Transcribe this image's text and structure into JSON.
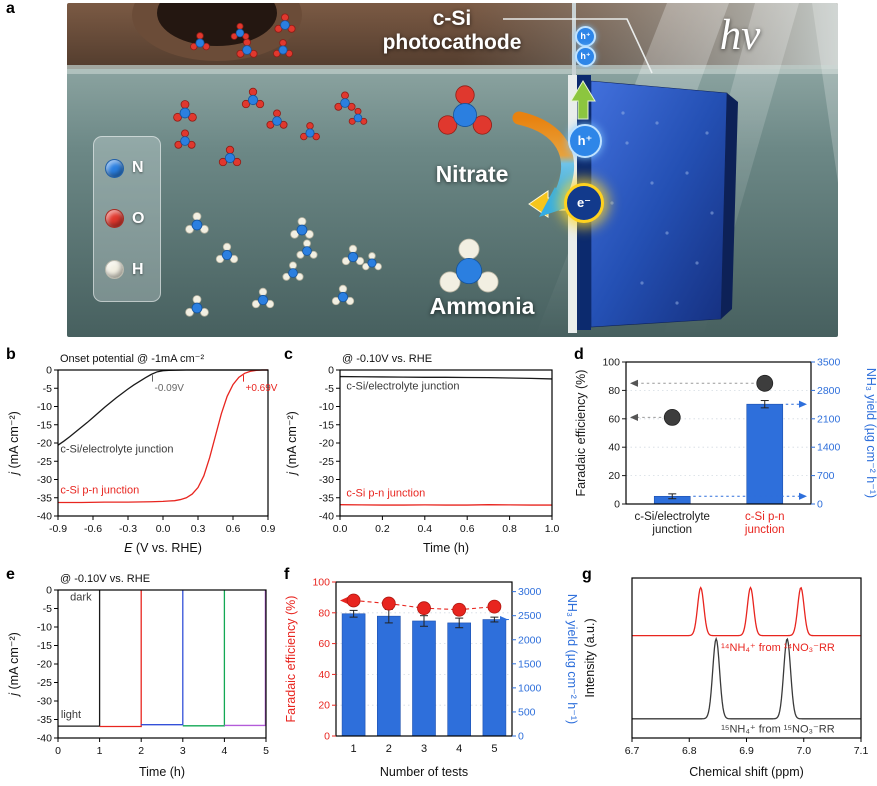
{
  "panels": {
    "a": {
      "letter": "a"
    },
    "b": {
      "letter": "b"
    },
    "c": {
      "letter": "c"
    },
    "d": {
      "letter": "d"
    },
    "e": {
      "letter": "e"
    },
    "f": {
      "letter": "f"
    },
    "g": {
      "letter": "g"
    }
  },
  "panel_a": {
    "title_line1": "c-Si",
    "title_line2": "photocathode",
    "hv": "hν",
    "nitrate_label": "Nitrate",
    "ammonia_label": "Ammonia",
    "hole_label": "h⁺",
    "electron_label": "e⁻",
    "legend": [
      {
        "label": "N",
        "color": "#2b7fe0"
      },
      {
        "label": "O",
        "color": "#e0382e"
      },
      {
        "label": "H",
        "color": "#f2efe2"
      }
    ]
  },
  "colors": {
    "red": "#e8251f",
    "blue": "#2e6fdb",
    "black": "#1a1a1a"
  },
  "chart_data": [
    {
      "id": "b",
      "type": "line",
      "title": "Onset potential @ -1mA cm⁻²",
      "xlabel": {
        "italic": "E",
        "rest": " (V vs. RHE)"
      },
      "ylabel": {
        "italic": "j",
        "rest": " (mA cm⁻²)"
      },
      "xlim": [
        -0.9,
        0.9
      ],
      "ylim": [
        -40,
        0
      ],
      "xticks": [
        "-0.9",
        "-0.6",
        "-0.3",
        "0.0",
        "0.3",
        "0.6",
        "0.9"
      ],
      "yticks": [
        0,
        -5,
        -10,
        -15,
        -20,
        -25,
        -30,
        -35,
        -40
      ],
      "series": [
        {
          "name": "c-Si/electrolyte junction",
          "color": "#1a1a1a",
          "label_color": "#3a3a3a",
          "label_pos": [
            -0.88,
            -22.6
          ],
          "x": [
            -0.9,
            -0.85,
            -0.8,
            -0.75,
            -0.7,
            -0.65,
            -0.6,
            -0.55,
            -0.5,
            -0.45,
            -0.4,
            -0.35,
            -0.3,
            -0.25,
            -0.2,
            -0.15,
            -0.1,
            -0.05,
            0,
            0.05,
            0.1,
            0.2,
            0.4,
            0.6,
            0.8,
            0.9
          ],
          "y": [
            -20.6,
            -19.5,
            -18.3,
            -17.0,
            -15.7,
            -14.4,
            -13.0,
            -11.6,
            -10.2,
            -8.9,
            -7.6,
            -6.4,
            -5.2,
            -4.1,
            -3.1,
            -2.1,
            -1.2,
            -0.5,
            -0.2,
            -0.1,
            -0.05,
            0,
            0,
            0,
            0,
            0
          ]
        },
        {
          "name": "c-Si p-n junction",
          "color": "#e8251f",
          "label_color": "#e8251f",
          "label_pos": [
            -0.88,
            -33.9
          ],
          "x": [
            -0.9,
            -0.7,
            -0.5,
            -0.3,
            -0.1,
            0,
            0.05,
            0.1,
            0.15,
            0.2,
            0.25,
            0.3,
            0.35,
            0.4,
            0.45,
            0.5,
            0.55,
            0.6,
            0.65,
            0.7,
            0.75,
            0.8,
            0.85,
            0.9
          ],
          "y": [
            -36.3,
            -36.3,
            -36.2,
            -36.2,
            -36.1,
            -36.0,
            -35.9,
            -35.8,
            -35.5,
            -35.0,
            -34.0,
            -32.2,
            -29.0,
            -24.0,
            -18.0,
            -12.0,
            -7.2,
            -4.0,
            -2.0,
            -0.9,
            -0.35,
            -0.1,
            0,
            0
          ]
        }
      ],
      "annotations": [
        {
          "text": "-0.09V",
          "x": -0.09,
          "y": -5.8,
          "color": "#666666"
        },
        {
          "text": "+0.69V",
          "x": 0.69,
          "y": -5.8,
          "color": "#e8251f"
        }
      ]
    },
    {
      "id": "c",
      "type": "line",
      "title": "@ -0.10V vs. RHE",
      "xlabel": "Time (h)",
      "ylabel": {
        "italic": "j",
        "rest": " (mA cm⁻²)"
      },
      "xlim": [
        0,
        1
      ],
      "ylim": [
        -40,
        0
      ],
      "xticks": [
        "0.0",
        "0.2",
        "0.4",
        "0.6",
        "0.8",
        "1.0"
      ],
      "yticks": [
        0,
        -5,
        -10,
        -15,
        -20,
        -25,
        -30,
        -35,
        -40
      ],
      "series": [
        {
          "name": "c-Si/electrolyte junction",
          "color": "#1a1a1a",
          "label_color": "#3a3a3a",
          "label_pos": [
            0.03,
            -5.4
          ],
          "x": [
            0,
            0.1,
            0.2,
            0.3,
            0.4,
            0.5,
            0.6,
            0.7,
            0.8,
            0.9,
            1.0
          ],
          "y": [
            -1.8,
            -1.85,
            -1.9,
            -1.95,
            -2.0,
            -2.0,
            -2.05,
            -2.1,
            -2.2,
            -2.3,
            -2.45
          ]
        },
        {
          "name": "c-Si p-n junction",
          "color": "#e8251f",
          "label_color": "#e8251f",
          "label_pos": [
            0.03,
            -34.6
          ],
          "x": [
            0,
            0.1,
            0.2,
            0.3,
            0.4,
            0.5,
            0.6,
            0.7,
            0.8,
            0.9,
            1.0
          ],
          "y": [
            -36.9,
            -36.95,
            -37,
            -37,
            -36.95,
            -37,
            -37,
            -36.9,
            -36.95,
            -37,
            -37
          ]
        }
      ]
    },
    {
      "id": "d",
      "type": "dual-bar",
      "ylabel_left": "Faradaic efficiency (%)",
      "ylabel_right": "NH₃ yield (µg cm⁻² h⁻¹)",
      "left_color": "#1a1a1a",
      "right_color": "#2e6fdb",
      "ylim_left": [
        0,
        100
      ],
      "yticks_left": [
        0,
        20,
        40,
        60,
        80,
        100
      ],
      "ylim_right": [
        0,
        3500
      ],
      "yticks_right": [
        0,
        700,
        1400,
        2100,
        2800,
        3500
      ],
      "categories": [
        {
          "lines": [
            "c-Si/electrolyte",
            "junction"
          ],
          "color": "#1a1a1a"
        },
        {
          "lines": [
            "c-Si p-n",
            "junction"
          ],
          "color": "#e8251f"
        }
      ],
      "bars_yield": [
        {
          "value": 190,
          "err": 60
        },
        {
          "value": 2460,
          "err": 90
        }
      ],
      "fe_points": [
        {
          "value": 61
        },
        {
          "value": 85
        }
      ],
      "bar_color": "#2e6fdb",
      "dot_color": "#3d3d3d",
      "bar_arrows": "all",
      "dot_arrows": "all"
    },
    {
      "id": "e",
      "type": "chopped",
      "title": "@ -0.10V vs. RHE",
      "xlabel": "Time (h)",
      "ylabel": {
        "italic": "j",
        "rest": " (mA cm⁻²)"
      },
      "xlim": [
        0,
        5
      ],
      "ylim": [
        -40,
        0
      ],
      "xticks": [
        "0",
        "1",
        "2",
        "3",
        "4",
        "5"
      ],
      "yticks": [
        0,
        -5,
        -10,
        -15,
        -20,
        -25,
        -30,
        -35,
        -40
      ],
      "segments": [
        {
          "t0": 0,
          "t1": 1,
          "level": -36.8,
          "color": "#1a1a1a"
        },
        {
          "t0": 1,
          "t1": 2,
          "level": -36.9,
          "color": "#e8251f"
        },
        {
          "t0": 2,
          "t1": 3,
          "level": -36.4,
          "color": "#3350d9"
        },
        {
          "t0": 3,
          "t1": 4,
          "level": -36.7,
          "color": "#12a854"
        },
        {
          "t0": 4,
          "t1": 4.985,
          "level": -36.6,
          "color": "#b35bd9"
        }
      ],
      "texts": [
        {
          "text": "dark",
          "x": 0.55,
          "y": -2.8,
          "color": "#3a3a3a",
          "anchor": "middle"
        },
        {
          "text": "light",
          "x": 0.07,
          "y": -34.6,
          "color": "#3a3a3a",
          "anchor": "start"
        }
      ]
    },
    {
      "id": "f",
      "type": "dual-bar",
      "xlabel": "Number of tests",
      "ylabel_left": "Faradaic efficiency (%)",
      "ylabel_right": "NH₃ yield (µg cm⁻² h⁻¹)",
      "left_color": "#e8251f",
      "right_color": "#2e6fdb",
      "ylim_left": [
        0,
        100
      ],
      "yticks_left": [
        0,
        20,
        40,
        60,
        80,
        100
      ],
      "ylim_right": [
        0,
        3200
      ],
      "yticks_right": [
        0,
        500,
        1000,
        1500,
        2000,
        2500,
        3000
      ],
      "categories": [
        "1",
        "2",
        "3",
        "4",
        "5"
      ],
      "bars_yield": [
        {
          "value": 2540,
          "err": 70
        },
        {
          "value": 2490,
          "err": 140
        },
        {
          "value": 2390,
          "err": 110
        },
        {
          "value": 2350,
          "err": 100
        },
        {
          "value": 2420,
          "err": 50
        }
      ],
      "fe_points": [
        {
          "value": 88,
          "err": 2.5
        },
        {
          "value": 86,
          "err": 3
        },
        {
          "value": 83,
          "err": 3
        },
        {
          "value": 82,
          "err": 3.5
        },
        {
          "value": 84,
          "err": 2.5
        }
      ],
      "bar_color": "#2e6fdb",
      "dot_color": "#e8251f",
      "bar_arrows": "last",
      "dot_arrows": "first",
      "connect_dots": true
    },
    {
      "id": "g",
      "type": "nmr",
      "xlabel": "Chemical shift (ppm)",
      "ylabel": "Intensity (a.u.)",
      "xlim": [
        6.7,
        7.1
      ],
      "xticks": [
        "6.7",
        "6.8",
        "6.9",
        "7.0",
        "7.1"
      ],
      "series": [
        {
          "name": "¹⁴NH₄⁺ from ¹⁴NO₃⁻RR",
          "color": "#e8251f",
          "baseline": 0.64,
          "peak_height": 0.3,
          "sigma": 0.0055,
          "peaks": [
            6.82,
            6.907,
            6.995
          ],
          "label_pos": [
            6.955,
            0.545
          ],
          "label_anchor": "middle",
          "label_color": "#e8251f"
        },
        {
          "name": "¹⁵NH₄⁺ from ¹⁵NO₃⁻RR",
          "color": "#3a3a3a",
          "baseline": 0.12,
          "peak_height": 0.5,
          "sigma": 0.006,
          "peaks": [
            6.847,
            6.971
          ],
          "label_pos": [
            6.955,
            0.035
          ],
          "label_anchor": "middle",
          "label_color": "#3a3a3a"
        }
      ]
    }
  ]
}
